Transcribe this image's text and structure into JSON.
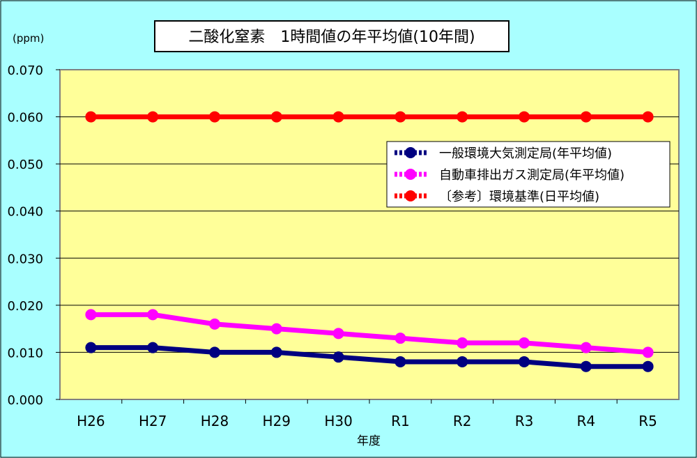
{
  "chart_data": {
    "type": "line",
    "title": "二酸化窒素　1時間値の年平均値(10年間)",
    "unit_label": "(ppm)",
    "xlabel": "年度",
    "ylabel": "",
    "categories": [
      "H26",
      "H27",
      "H28",
      "H29",
      "H30",
      "R1",
      "R2",
      "R3",
      "R4",
      "R5"
    ],
    "ylim": [
      0,
      0.07
    ],
    "yticks": [
      "0.000",
      "0.010",
      "0.020",
      "0.030",
      "0.040",
      "0.050",
      "0.060",
      "0.070"
    ],
    "grid": true,
    "legend_position": "right",
    "series": [
      {
        "name": "一般環境大気測定局(年平均値)",
        "color": "#000080",
        "values": [
          0.011,
          0.011,
          0.01,
          0.01,
          0.009,
          0.008,
          0.008,
          0.008,
          0.007,
          0.007
        ]
      },
      {
        "name": "自動車排出ガス測定局(年平均値)",
        "color": "#ff00ff",
        "values": [
          0.018,
          0.018,
          0.016,
          0.015,
          0.014,
          0.013,
          0.012,
          0.012,
          0.011,
          0.01
        ]
      },
      {
        "name": "〔参考〕環境基準(日平均値)",
        "color": "#ff0000",
        "values": [
          0.06,
          0.06,
          0.06,
          0.06,
          0.06,
          0.06,
          0.06,
          0.06,
          0.06,
          0.06
        ]
      }
    ],
    "colors": {
      "background": "#a9ffff",
      "plot_area": "#ffff99",
      "gridline": "#000000"
    }
  }
}
